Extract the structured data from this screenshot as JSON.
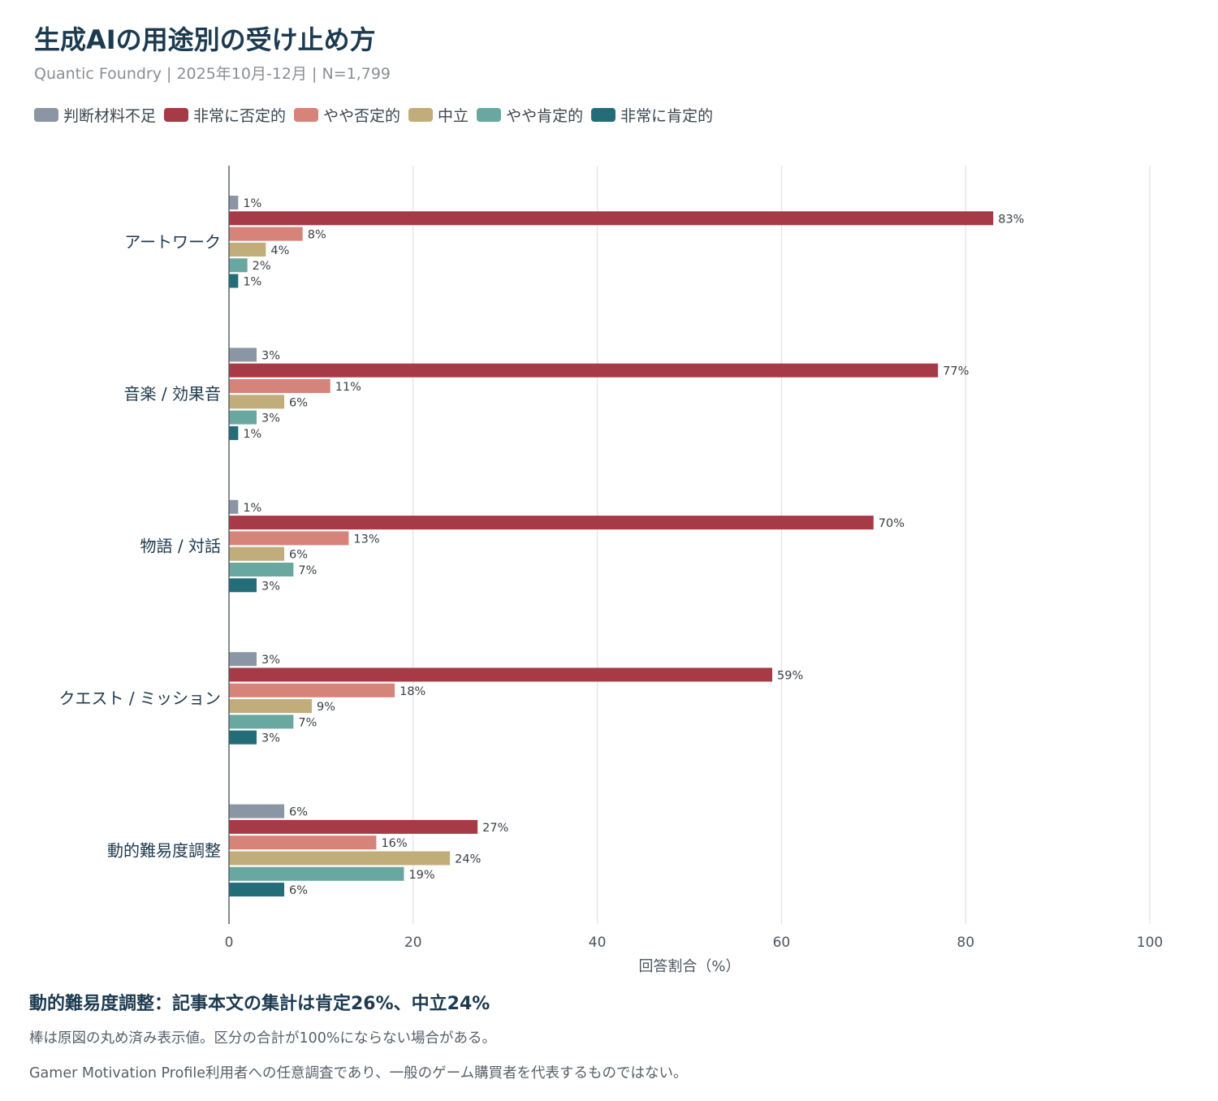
{
  "header": {
    "title": "生成AIの用途別の受け止め方",
    "subtitle": "Quantic Foundry | 2025年10月-12月 | N=1,799"
  },
  "colors": {
    "判断材料不足": "#8a96a3",
    "非常に否定的": "#a63a46",
    "やや否定的": "#d6837a",
    "中立": "#c1ad7a",
    "やや肯定的": "#69a8a1",
    "非常に肯定的": "#236d79"
  },
  "chart_data": {
    "type": "bar",
    "orientation": "horizontal",
    "categories": [
      "アートワーク",
      "音楽 / 効果音",
      "物語 / 対話",
      "クエスト / ミッション",
      "動的難易度調整"
    ],
    "series": [
      {
        "name": "判断材料不足",
        "values": [
          1,
          3,
          1,
          3,
          6
        ]
      },
      {
        "name": "非常に否定的",
        "values": [
          83,
          77,
          70,
          59,
          27
        ]
      },
      {
        "name": "やや否定的",
        "values": [
          8,
          11,
          13,
          18,
          16
        ]
      },
      {
        "name": "中立",
        "values": [
          4,
          6,
          6,
          9,
          24
        ]
      },
      {
        "name": "やや肯定的",
        "values": [
          2,
          3,
          7,
          7,
          19
        ]
      },
      {
        "name": "非常に肯定的",
        "values": [
          1,
          1,
          3,
          3,
          6
        ]
      }
    ],
    "xlim": [
      0,
      100
    ],
    "xticks": [
      "0",
      "20",
      "40",
      "60",
      "80",
      "100"
    ],
    "xlabel": "回答割合（%）",
    "value_suffix": "%",
    "grid": true,
    "legend_position": "top-left"
  },
  "notes": {
    "heading": "動的難易度調整：記事本文の集計は肯定26%、中立24%",
    "line1": "棒は原図の丸め済み表示値。区分の合計が100%にならない場合がある。",
    "line2": "Gamer Motivation Profile利用者への任意調査であり、一般のゲーム購買者を代表するものではない。"
  }
}
